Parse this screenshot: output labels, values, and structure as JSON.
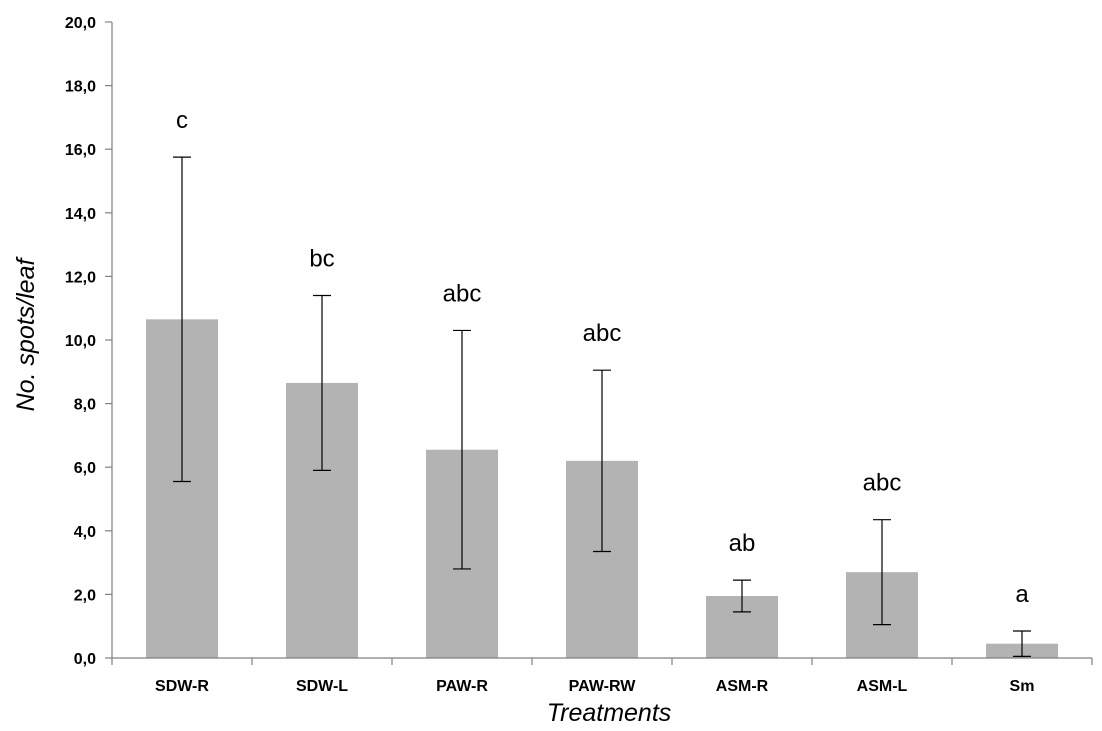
{
  "chart_data": {
    "type": "bar",
    "title": "",
    "xlabel": "Treatments",
    "ylabel": "No. spots/leaf",
    "ylim": [
      0,
      20
    ],
    "ytick_step": 2,
    "ytick_labels": [
      "0,0",
      "2,0",
      "4,0",
      "6,0",
      "8,0",
      "10,0",
      "12,0",
      "14,0",
      "16,0",
      "18,0",
      "20,0"
    ],
    "categories": [
      "SDW-R",
      "SDW-L",
      "PAW-R",
      "PAW-RW",
      "ASM-R",
      "ASM-L",
      "Sm"
    ],
    "values": [
      10.65,
      8.65,
      6.55,
      6.2,
      1.95,
      2.7,
      0.45
    ],
    "error_low": [
      5.55,
      5.9,
      2.8,
      3.35,
      1.45,
      1.05,
      0.05
    ],
    "error_high": [
      15.75,
      11.4,
      10.3,
      9.05,
      2.45,
      4.35,
      0.85
    ],
    "significance_labels": [
      "c",
      "bc",
      "abc",
      "abc",
      "ab",
      "abc",
      "a"
    ],
    "grid": false,
    "legend": "none",
    "bar_color": "#b3b3b3",
    "axis_color": "#808080",
    "error_bar_color": "#000000"
  }
}
